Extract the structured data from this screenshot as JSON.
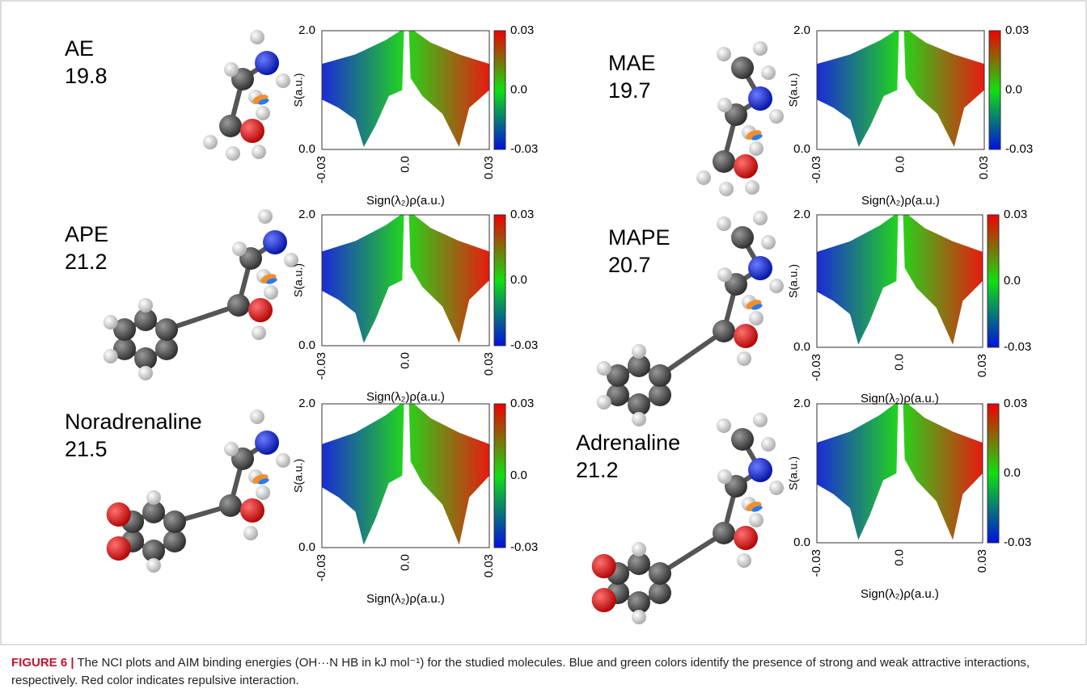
{
  "panels": [
    {
      "name": "AE",
      "energy": 19.8
    },
    {
      "name": "MAE",
      "energy": 19.7
    },
    {
      "name": "APE",
      "energy": 21.2
    },
    {
      "name": "MAPE",
      "energy": 20.7
    },
    {
      "name": "Noradrenaline",
      "energy": 21.5
    },
    {
      "name": "Adrenaline",
      "energy": 21.2
    }
  ],
  "plot": {
    "y_ticks": [
      "0.0",
      "2.0"
    ],
    "x_ticks": [
      "-0.03",
      "0.0",
      "0.03"
    ],
    "colorbar_ticks": [
      "-0.03",
      "0.0",
      "0.03"
    ],
    "x_label": "Sign(λ₂)ρ(a.u.)",
    "y_label": "S(a.u.)"
  },
  "caption": {
    "label": "FIGURE 6 |",
    "text": "The NCI plots and AIM binding energies (OH···N HB in kJ mol⁻¹) for the studied molecules. Blue and green colors identify the presence of strong and weak attractive interactions, respectively. Red color indicates repulsive interaction."
  }
}
